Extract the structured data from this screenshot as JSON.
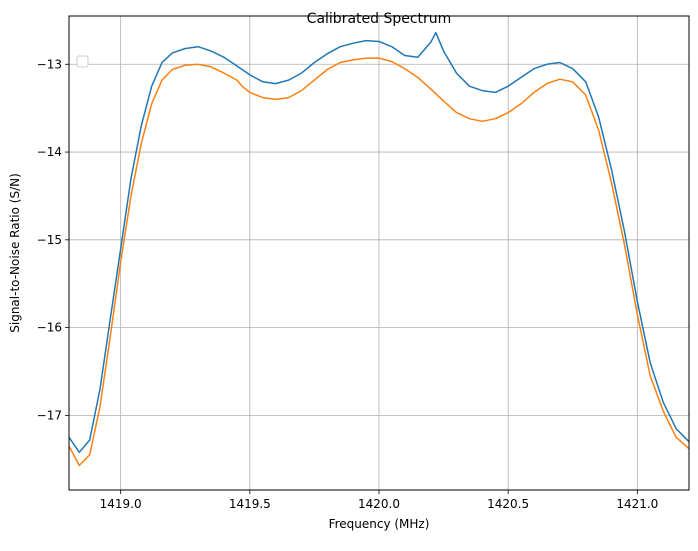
{
  "chart_data": {
    "type": "line",
    "title": "Calibrated Spectrum",
    "xlabel": "Frequency (MHz)",
    "ylabel": "Signal-to-Noise Ratio (S/N)",
    "xlim": [
      1418.8,
      1421.2
    ],
    "ylim": [
      -17.85,
      -12.45
    ],
    "x_ticks": [
      1419.0,
      1419.5,
      1420.0,
      1420.5,
      1421.0
    ],
    "x_tick_labels": [
      "1419.0",
      "1419.5",
      "1420.0",
      "1420.5",
      "1421.0"
    ],
    "y_ticks": [
      -17,
      -16,
      -15,
      -14,
      -13
    ],
    "y_tick_labels": [
      "−17",
      "−16",
      "−15",
      "−14",
      "−13"
    ],
    "grid": true,
    "legend": {
      "placement": "top-left",
      "entries": []
    },
    "series": [
      {
        "color": "#1f77b4",
        "x": [
          1418.8,
          1418.84,
          1418.88,
          1418.92,
          1418.96,
          1419.0,
          1419.04,
          1419.08,
          1419.12,
          1419.16,
          1419.2,
          1419.25,
          1419.3,
          1419.35,
          1419.4,
          1419.45,
          1419.5,
          1419.55,
          1419.6,
          1419.65,
          1419.7,
          1419.75,
          1419.8,
          1419.85,
          1419.9,
          1419.95,
          1420.0,
          1420.05,
          1420.1,
          1420.15,
          1420.2,
          1420.22,
          1420.25,
          1420.3,
          1420.35,
          1420.4,
          1420.45,
          1420.5,
          1420.55,
          1420.6,
          1420.65,
          1420.7,
          1420.75,
          1420.8,
          1420.85,
          1420.9,
          1420.95,
          1421.0,
          1421.05,
          1421.1,
          1421.15,
          1421.2
        ],
        "y": [
          -17.25,
          -17.42,
          -17.28,
          -16.7,
          -15.9,
          -15.1,
          -14.3,
          -13.7,
          -13.25,
          -12.98,
          -12.87,
          -12.82,
          -12.8,
          -12.85,
          -12.92,
          -13.02,
          -13.12,
          -13.2,
          -13.22,
          -13.18,
          -13.1,
          -12.98,
          -12.88,
          -12.8,
          -12.76,
          -12.73,
          -12.74,
          -12.8,
          -12.9,
          -12.92,
          -12.75,
          -12.64,
          -12.85,
          -13.1,
          -13.25,
          -13.3,
          -13.32,
          -13.25,
          -13.15,
          -13.05,
          -13.0,
          -12.98,
          -13.05,
          -13.2,
          -13.6,
          -14.2,
          -14.9,
          -15.7,
          -16.4,
          -16.85,
          -17.15,
          -17.3
        ]
      },
      {
        "color": "#ff7f0e",
        "x": [
          1418.8,
          1418.84,
          1418.88,
          1418.92,
          1418.96,
          1419.0,
          1419.04,
          1419.08,
          1419.12,
          1419.16,
          1419.2,
          1419.25,
          1419.3,
          1419.35,
          1419.4,
          1419.45,
          1419.47,
          1419.5,
          1419.55,
          1419.6,
          1419.65,
          1419.7,
          1419.75,
          1419.8,
          1419.85,
          1419.9,
          1419.95,
          1420.0,
          1420.05,
          1420.1,
          1420.15,
          1420.2,
          1420.25,
          1420.3,
          1420.35,
          1420.4,
          1420.45,
          1420.5,
          1420.55,
          1420.6,
          1420.65,
          1420.7,
          1420.75,
          1420.8,
          1420.85,
          1420.9,
          1420.95,
          1421.0,
          1421.05,
          1421.1,
          1421.15,
          1421.2
        ],
        "y": [
          -17.35,
          -17.57,
          -17.45,
          -16.9,
          -16.1,
          -15.25,
          -14.5,
          -13.9,
          -13.45,
          -13.18,
          -13.06,
          -13.01,
          -13.0,
          -13.03,
          -13.1,
          -13.18,
          -13.25,
          -13.32,
          -13.38,
          -13.4,
          -13.38,
          -13.3,
          -13.18,
          -13.06,
          -12.98,
          -12.95,
          -12.93,
          -12.93,
          -12.97,
          -13.05,
          -13.15,
          -13.28,
          -13.42,
          -13.55,
          -13.62,
          -13.65,
          -13.62,
          -13.55,
          -13.45,
          -13.32,
          -13.22,
          -13.17,
          -13.2,
          -13.35,
          -13.75,
          -14.35,
          -15.05,
          -15.85,
          -16.55,
          -16.95,
          -17.25,
          -17.38
        ]
      }
    ]
  }
}
